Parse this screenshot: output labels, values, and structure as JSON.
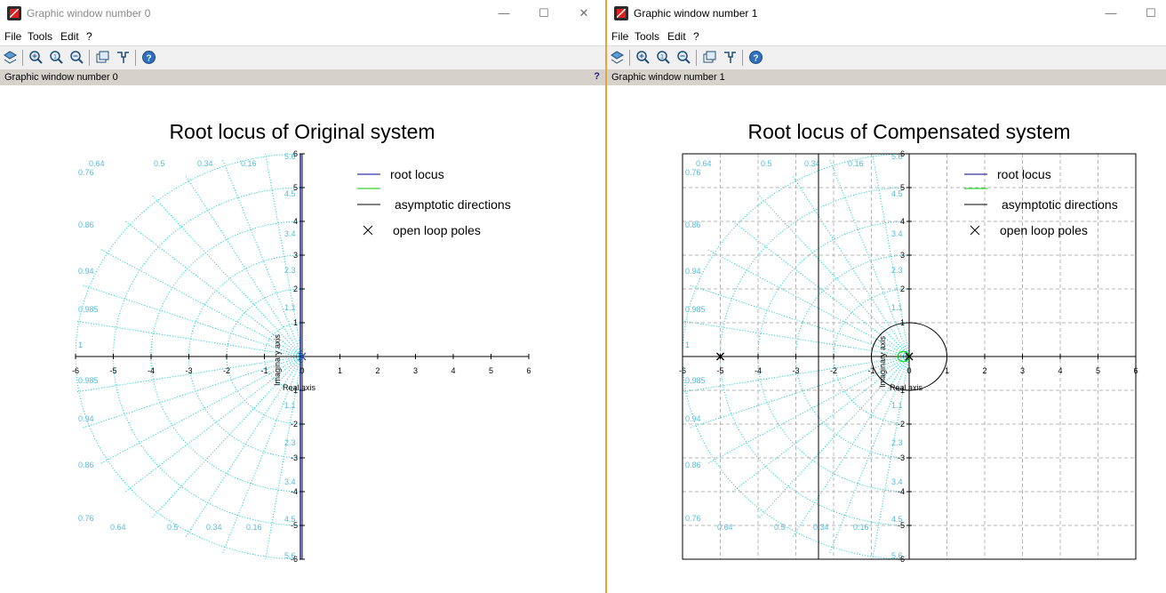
{
  "windows": [
    {
      "title": "Graphic window number 0",
      "menu": [
        "File",
        "Tools",
        "Edit",
        "?"
      ],
      "info_text": "Graphic window number 0",
      "help_glyph": "?",
      "controls": {
        "minimize": "—",
        "maximize": "☐",
        "close": "✕"
      },
      "toolbar_icons": [
        "rotate-icon",
        "zoom-in-icon",
        "zoom-original-icon",
        "zoom-out-icon",
        "select-figure-icon",
        "data-tip-icon",
        "help-icon"
      ],
      "plot": {
        "title": "Root locus of Original system",
        "xlabel": "Real axis",
        "ylabel": "Imaginary axis",
        "legend": [
          "root locus",
          "",
          "asymptotic directions",
          "open loop poles"
        ]
      }
    },
    {
      "title": "Graphic window number 1",
      "menu": [
        "File",
        "Tools",
        "Edit",
        "?"
      ],
      "info_text": "Graphic window number 1",
      "controls": {
        "minimize": "—",
        "maximize": "☐"
      },
      "toolbar_icons": [
        "rotate-icon",
        "zoom-in-icon",
        "zoom-original-icon",
        "zoom-out-icon",
        "select-figure-icon",
        "data-tip-icon",
        "help-icon"
      ],
      "plot": {
        "title": "Root locus of Compensated system",
        "xlabel": "Real axis",
        "ylabel": "Imaginary axis",
        "legend": [
          "root locus",
          "",
          "asymptotic directions",
          "open loop poles"
        ]
      }
    }
  ],
  "chart_data": [
    {
      "type": "scatter",
      "title": "Root locus of Original system",
      "xlabel": "Real axis",
      "ylabel": "Imaginary axis",
      "xlim": [
        -6,
        6
      ],
      "ylim": [
        -6,
        6
      ],
      "x_ticks": [
        -6,
        -5,
        -4,
        -3,
        -2,
        -1,
        0,
        1,
        2,
        3,
        4,
        5,
        6
      ],
      "y_ticks": [
        -6,
        -5,
        -4,
        -3,
        -2,
        -1,
        0,
        1,
        2,
        3,
        4,
        5,
        6
      ],
      "grid": false,
      "legend_position": "top-right",
      "open_loop_poles": [
        [
          0,
          0
        ]
      ],
      "root_locus": [
        {
          "x": [
            0,
            0
          ],
          "y": [
            -6,
            6
          ]
        }
      ],
      "damping_labels": [
        "0.76",
        "0.64",
        "0.5",
        "0.34",
        "0.16",
        "0.86",
        "0.94",
        "0.985",
        "1"
      ],
      "omega_labels": [
        "5.6",
        "4.5",
        "3.4",
        "2.3",
        "1.1"
      ],
      "colors": {
        "root_locus": "#00008b",
        "grid": "#00cccc",
        "grid_label": "#55bbdd",
        "asymptote": "#000000",
        "second": "#00cc00"
      }
    },
    {
      "type": "scatter",
      "title": "Root locus of Compensated system",
      "xlabel": "Real axis",
      "ylabel": "Imaginary axis",
      "xlim": [
        -6,
        6
      ],
      "ylim": [
        -6,
        6
      ],
      "x_ticks": [
        -6,
        -5,
        -4,
        -3,
        -2,
        -1,
        0,
        1,
        2,
        3,
        4,
        5,
        6
      ],
      "y_ticks": [
        -6,
        -5,
        -4,
        -3,
        -2,
        -1,
        0,
        1,
        2,
        3,
        4,
        5,
        6
      ],
      "grid": true,
      "legend_position": "top-right",
      "open_loop_poles": [
        [
          -5,
          0
        ],
        [
          0,
          0
        ]
      ],
      "asymptote_x": -2.4,
      "root_locus_circle": {
        "center": [
          0,
          0
        ],
        "radius": 1
      },
      "damping_labels": [
        "0.76",
        "0.64",
        "0.5",
        "0.34",
        "0.16",
        "0.86",
        "0.94",
        "0.985",
        "1"
      ],
      "omega_labels": [
        "5.6",
        "4.5",
        "3.4",
        "2.3",
        "1.1"
      ],
      "colors": {
        "root_locus": "#000000",
        "grid": "#00cccc",
        "grid_label": "#55bbdd",
        "asymptote": "#000000",
        "second": "#00cc00"
      }
    }
  ]
}
